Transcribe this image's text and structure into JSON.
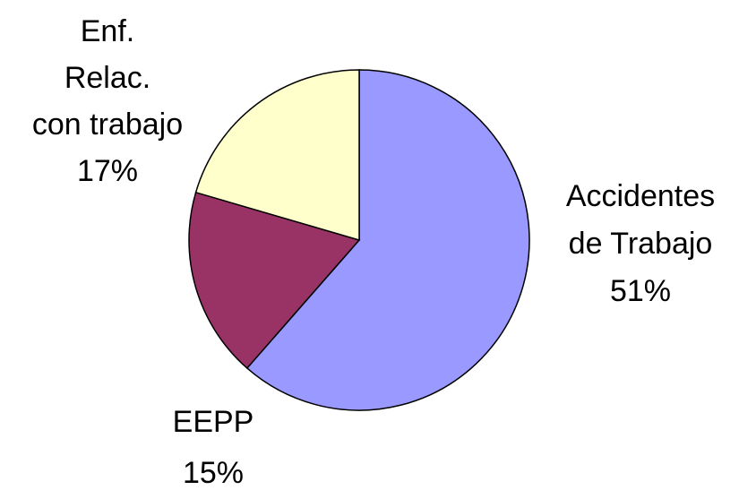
{
  "chart_data": {
    "type": "pie",
    "categories": [
      "Accidentes\nde Trabajo",
      "EEPP",
      "Enf.\nRelac.\ncon trabajo"
    ],
    "values": [
      51,
      15,
      17
    ],
    "value_labels": [
      "51%",
      "15%",
      "17%"
    ],
    "colors": [
      "#9999ff",
      "#993366",
      "#ffffcc"
    ]
  }
}
